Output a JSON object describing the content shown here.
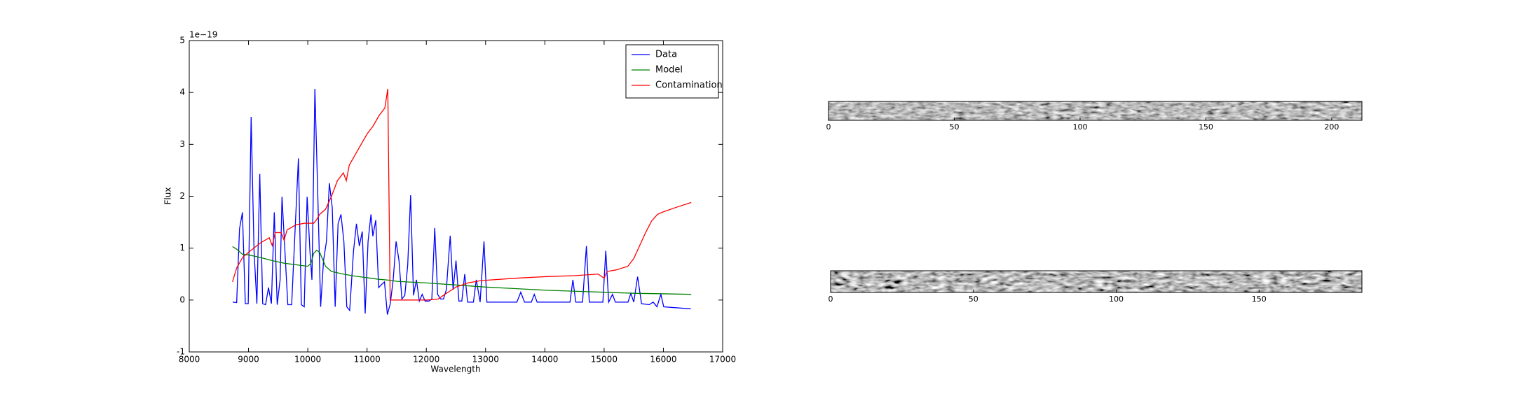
{
  "chart_data": [
    {
      "type": "line",
      "xlabel": "Wavelength",
      "ylabel": "Flux",
      "offset_label": "1e−19",
      "xlim": [
        8000,
        17000
      ],
      "xticks": [
        8000,
        9000,
        10000,
        11000,
        12000,
        13000,
        14000,
        15000,
        16000,
        17000
      ],
      "ylim": [
        -1,
        5
      ],
      "yticks": [
        -1,
        0,
        1,
        2,
        3,
        4,
        5
      ],
      "legend": "upper right",
      "series": [
        {
          "name": "Data",
          "color": "#0000ff",
          "x": [
            8734,
            8800,
            8848,
            8897,
            8946,
            8995,
            9044,
            9093,
            9141,
            9190,
            9239,
            9288,
            9337,
            9386,
            9435,
            9484,
            9533,
            9565,
            9614,
            9663,
            9728,
            9777,
            9842,
            9891,
            9940,
            9989,
            10038,
            10070,
            10120,
            10168,
            10217,
            10266,
            10315,
            10364,
            10413,
            10462,
            10511,
            10560,
            10609,
            10658,
            10707,
            10772,
            10821,
            10870,
            10919,
            10968,
            11017,
            11066,
            11098,
            11147,
            11196,
            11245,
            11294,
            11343,
            11392,
            11441,
            11490,
            11539,
            11588,
            11637,
            11686,
            11735,
            11784,
            11833,
            11882,
            11930,
            11979,
            12044,
            12093,
            12142,
            12191,
            12240,
            12289,
            12338,
            12403,
            12452,
            12501,
            12550,
            12599,
            12648,
            12697,
            12746,
            12795,
            12843,
            12908,
            12973,
            13022,
            13528,
            13593,
            13658,
            13772,
            13821,
            13870,
            14424,
            14473,
            14522,
            14636,
            14701,
            14750,
            14979,
            15028,
            15077,
            15141,
            15190,
            15403,
            15451,
            15500,
            15565,
            15631,
            15761,
            15827,
            15892,
            15957,
            16006,
            16463
          ],
          "values": [
            -0.04,
            -0.05,
            1.37,
            1.69,
            -0.07,
            -0.07,
            3.53,
            0.95,
            -0.07,
            2.43,
            -0.07,
            -0.09,
            0.24,
            -0.07,
            1.69,
            -0.09,
            0.39,
            1.99,
            0.95,
            -0.09,
            -0.09,
            1.13,
            2.73,
            -0.09,
            -0.13,
            1.99,
            0.91,
            0.39,
            4.07,
            2.06,
            -0.13,
            0.76,
            1.13,
            2.25,
            1.78,
            -0.13,
            1.47,
            1.65,
            1.13,
            -0.13,
            -0.2,
            0.95,
            1.47,
            1.04,
            1.32,
            -0.26,
            1.13,
            1.65,
            1.23,
            1.54,
            0.24,
            0.3,
            0.35,
            -0.28,
            -0.07,
            0.39,
            1.13,
            0.76,
            0.02,
            0.09,
            0.67,
            2.02,
            0.09,
            0.39,
            -0.02,
            0.11,
            -0.02,
            -0.02,
            0.02,
            1.39,
            0.11,
            0.02,
            0.02,
            0.2,
            1.24,
            0.2,
            0.76,
            -0.02,
            -0.02,
            0.5,
            -0.04,
            -0.04,
            -0.04,
            0.39,
            -0.04,
            1.13,
            -0.04,
            -0.04,
            0.15,
            -0.04,
            -0.04,
            0.11,
            -0.04,
            -0.04,
            0.39,
            -0.04,
            -0.04,
            1.04,
            -0.04,
            -0.04,
            0.95,
            -0.04,
            0.11,
            -0.04,
            -0.04,
            0.13,
            -0.04,
            0.45,
            -0.07,
            -0.09,
            -0.04,
            -0.13,
            0.11,
            -0.13,
            -0.17
          ]
        },
        {
          "name": "Model",
          "color": "#008000",
          "x": [
            8730,
            8800,
            8900,
            9000,
            9200,
            9400,
            9600,
            9800,
            10000,
            10050,
            10100,
            10150,
            10200,
            10300,
            10400,
            10600,
            10800,
            11000,
            11200,
            11400,
            11500,
            12000,
            12500,
            13000,
            13500,
            14000,
            14500,
            15000,
            15500,
            16000,
            16470
          ],
          "values": [
            1.03,
            0.98,
            0.88,
            0.87,
            0.82,
            0.76,
            0.71,
            0.68,
            0.65,
            0.7,
            0.9,
            0.96,
            0.92,
            0.65,
            0.55,
            0.5,
            0.46,
            0.43,
            0.4,
            0.38,
            0.36,
            0.33,
            0.29,
            0.25,
            0.22,
            0.19,
            0.17,
            0.15,
            0.13,
            0.12,
            0.11
          ]
        },
        {
          "name": "Contamination",
          "color": "#ff0000",
          "x": [
            8730,
            8800,
            8900,
            9000,
            9200,
            9350,
            9400,
            9450,
            9550,
            9600,
            9650,
            9800,
            9950,
            10100,
            10150,
            10200,
            10300,
            10400,
            10500,
            10600,
            10650,
            10700,
            10800,
            10900,
            11000,
            11100,
            11200,
            11300,
            11350,
            11390,
            12000,
            12200,
            12300,
            12500,
            12700,
            12900,
            13000,
            13500,
            14000,
            14500,
            14900,
            15000,
            15050,
            15200,
            15400,
            15500,
            15600,
            15700,
            15800,
            15900,
            16000,
            16200,
            16470
          ],
          "values": [
            0.35,
            0.62,
            0.82,
            0.92,
            1.1,
            1.2,
            1.05,
            1.3,
            1.3,
            1.15,
            1.35,
            1.45,
            1.48,
            1.48,
            1.55,
            1.65,
            1.75,
            2.0,
            2.3,
            2.45,
            2.3,
            2.6,
            2.8,
            3.0,
            3.2,
            3.35,
            3.55,
            3.7,
            4.07,
            0.0,
            0.0,
            0.02,
            0.1,
            0.25,
            0.33,
            0.37,
            0.38,
            0.42,
            0.45,
            0.47,
            0.5,
            0.42,
            0.55,
            0.58,
            0.65,
            0.8,
            1.05,
            1.3,
            1.52,
            1.65,
            1.7,
            1.78,
            1.88
          ]
        }
      ]
    },
    {
      "type": "image",
      "xlim": [
        0,
        212
      ],
      "xticks": [
        0,
        50,
        100,
        150,
        200
      ]
    },
    {
      "type": "image",
      "xlim": [
        0,
        186
      ],
      "xticks": [
        0,
        50,
        100,
        150
      ]
    }
  ]
}
